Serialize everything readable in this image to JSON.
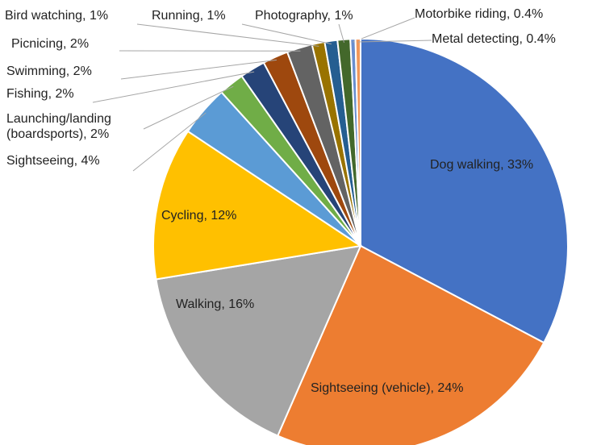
{
  "chart_data": {
    "type": "pie",
    "categories": [
      "Dog walking",
      "Sightseeing (vehicle)",
      "Walking",
      "Cycling",
      "Sightseeing",
      "Launching/landing (boardsports)",
      "Fishing",
      "Swimming",
      "Picnicing",
      "Bird watching",
      "Running",
      "Photography",
      "Motorbike riding",
      "Metal detecting"
    ],
    "values": [
      33,
      24,
      16,
      12,
      4,
      2,
      2,
      2,
      2,
      1,
      1,
      1,
      0.4,
      0.4
    ],
    "value_labels": [
      "Dog walking, 33%",
      "Sightseeing (vehicle), 24%",
      "Walking, 16%",
      "Cycling, 12%",
      "Sightseeing, 4%",
      "Launching/landing (boardsports), 2%",
      "Fishing, 2%",
      "Swimming, 2%",
      "Picnicing, 2%",
      "Bird watching, 1%",
      "Running, 1%",
      "Photography, 1%",
      "Motorbike riding, 0.4%",
      "Metal detecting, 0.4%"
    ],
    "colors": [
      "#4472c4",
      "#ed7d31",
      "#a5a5a5",
      "#ffc000",
      "#5b9bd5",
      "#70ad47",
      "#264478",
      "#9e480e",
      "#636363",
      "#997300",
      "#255e91",
      "#43682b",
      "#698ed0",
      "#f1975a"
    ]
  }
}
